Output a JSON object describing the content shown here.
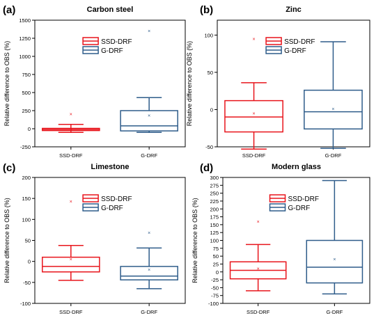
{
  "chart_data": [
    {
      "panel_label": "(a)",
      "type": "box",
      "title": "Carbon steel",
      "ylabel": "Relative difference to OBS (%)",
      "ylim": [
        -250,
        1500
      ],
      "yticks": [
        -250,
        0,
        250,
        500,
        750,
        1000,
        1250,
        1500
      ],
      "categories": [
        "SSD-DRF",
        "G-DRF"
      ],
      "legend": [
        "SSD-DRF",
        "G-DRF"
      ],
      "legend_position": "top-center",
      "boxes": [
        {
          "category": "SSD-DRF",
          "color": "#e8141b",
          "whisker_low": -50,
          "q1": -25,
          "median": -10,
          "q3": 5,
          "whisker_high": 60,
          "mean": -10,
          "outliers": [
            200
          ]
        },
        {
          "category": "G-DRF",
          "color": "#2e5c8a",
          "whisker_low": -50,
          "q1": -30,
          "median": 40,
          "q3": 250,
          "whisker_high": 430,
          "mean": 185,
          "outliers": [
            1350
          ]
        }
      ]
    },
    {
      "panel_label": "(b)",
      "type": "box",
      "title": "Zinc",
      "ylabel": "Relative difference to OBS (%)",
      "ylim": [
        -50,
        120
      ],
      "yticks": [
        -50,
        0,
        50,
        100
      ],
      "categories": [
        "SSD-DRF",
        "G-DRF"
      ],
      "legend": [
        "SSD-DRF",
        "G-DRF"
      ],
      "legend_position": "top-center",
      "boxes": [
        {
          "category": "SSD-DRF",
          "color": "#e8141b",
          "whisker_low": -53,
          "q1": -30,
          "median": -10,
          "q3": 12,
          "whisker_high": 36,
          "mean": -5,
          "outliers": [
            95
          ]
        },
        {
          "category": "G-DRF",
          "color": "#2e5c8a",
          "whisker_low": -52,
          "q1": -26,
          "median": -3,
          "q3": 26,
          "whisker_high": 91,
          "mean": 1,
          "outliers": []
        }
      ]
    },
    {
      "panel_label": "(c)",
      "type": "box",
      "title": "Limestone",
      "ylabel": "Relative difference to OBS (%)",
      "ylim": [
        -100,
        200
      ],
      "yticks": [
        -100,
        -50,
        0,
        50,
        100,
        150,
        200
      ],
      "categories": [
        "SSD-DRF",
        "G-DRF"
      ],
      "legend": [
        "SSD-DRF",
        "G-DRF"
      ],
      "legend_position": "top-center",
      "boxes": [
        {
          "category": "SSD-DRF",
          "color": "#e8141b",
          "whisker_low": -45,
          "q1": -25,
          "median": -12,
          "q3": 10,
          "whisker_high": 38,
          "mean": 5,
          "outliers": [
            143
          ]
        },
        {
          "category": "G-DRF",
          "color": "#2e5c8a",
          "whisker_low": -65,
          "q1": -44,
          "median": -35,
          "q3": -12,
          "whisker_high": 32,
          "mean": -20,
          "outliers": [
            68
          ]
        }
      ]
    },
    {
      "panel_label": "(d)",
      "type": "box",
      "title": "Modern glass",
      "ylabel": "Relative difference to OBS (%)",
      "ylim": [
        -100,
        300
      ],
      "yticks": [
        -100,
        -75,
        -50,
        -25,
        0,
        25,
        50,
        75,
        100,
        125,
        150,
        175,
        200,
        225,
        250,
        275,
        300
      ],
      "categories": [
        "SSD-DRF",
        "G-DRF"
      ],
      "legend": [
        "SSD-DRF",
        "G-DRF"
      ],
      "legend_position": "top-center",
      "boxes": [
        {
          "category": "SSD-DRF",
          "color": "#e8141b",
          "whisker_low": -60,
          "q1": -22,
          "median": 5,
          "q3": 32,
          "whisker_high": 87,
          "mean": 10,
          "outliers": [
            160
          ]
        },
        {
          "category": "G-DRF",
          "color": "#2e5c8a",
          "whisker_low": -70,
          "q1": -35,
          "median": 15,
          "q3": 100,
          "whisker_high": 290,
          "mean": 40,
          "outliers": []
        }
      ]
    }
  ]
}
